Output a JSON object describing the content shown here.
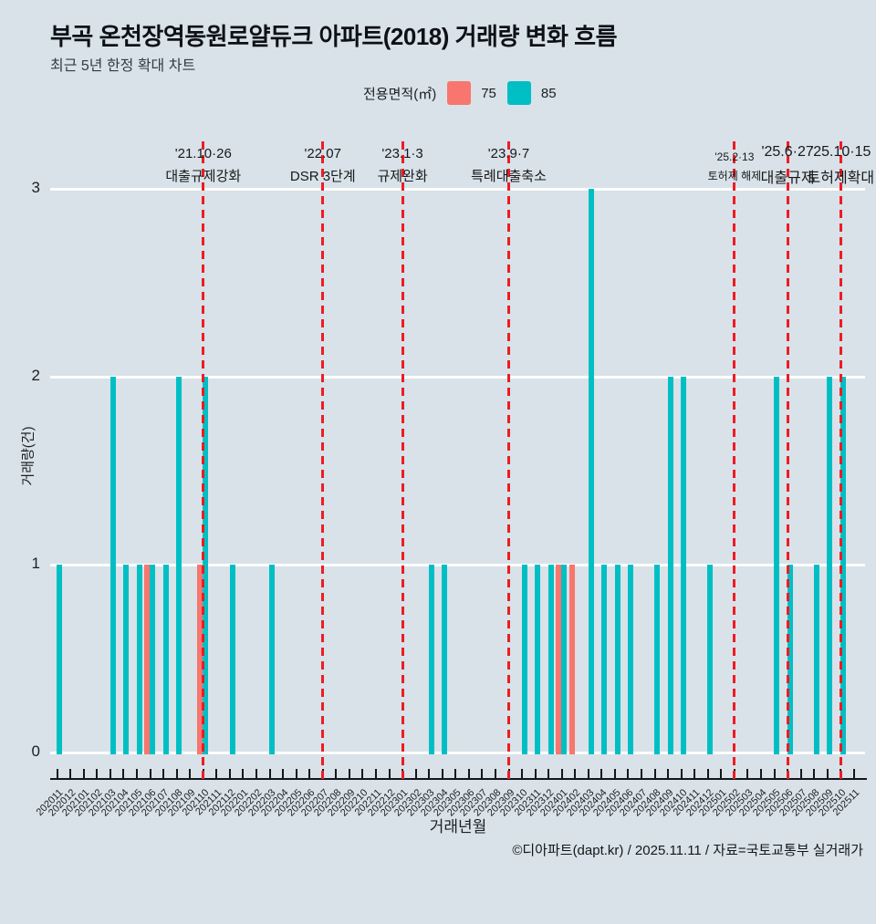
{
  "title": "부곡 온천장역동원로얄듀크 아파트(2018) 거래량 변화 흐름",
  "subtitle": "최근 5년 한정 확대 차트",
  "legend": {
    "label": "전용면적(㎡)",
    "items": [
      {
        "name": "75",
        "color": "#F8766D"
      },
      {
        "name": "85",
        "color": "#00BFC4"
      }
    ]
  },
  "footer": "©디아파트(dapt.kr) / 2025.11.11 / 자료=국토교통부 실거래가",
  "colors": {
    "background": "#d8e2e8",
    "gridline": "#ffffff",
    "event_line": "#ed1c24",
    "axis": "#14171a"
  },
  "chart_data": {
    "type": "bar",
    "title": "부곡 온천장역동원로얄듀크 아파트(2018) 거래량 변화 흐름",
    "subtitle": "최근 5년 한정 확대 차트",
    "xlabel": "거래년월",
    "ylabel": "거래량(건)",
    "ylim": [
      0,
      3
    ],
    "yticks": [
      0,
      1,
      2,
      3
    ],
    "grid": true,
    "legend_position": "top",
    "categories": [
      "202011",
      "202012",
      "202101",
      "202102",
      "202103",
      "202104",
      "202105",
      "202106",
      "202109",
      "202107",
      "202108",
      "202110",
      "202111",
      "202112",
      "202201",
      "202202",
      "202203",
      "202204",
      "202205",
      "202206",
      "202207",
      "202208",
      "202209",
      "202210",
      "202211",
      "202212",
      "202301",
      "202302",
      "202303",
      "202304",
      "202305",
      "202306",
      "202307",
      "202308",
      "202309",
      "202310",
      "202311",
      "202312",
      "202401",
      "202402",
      "202403",
      "202404",
      "202405",
      "202406",
      "202407",
      "202408",
      "202409",
      "202410",
      "202411",
      "202412",
      "202501",
      "202502",
      "202503",
      "202504",
      "202505",
      "202506",
      "202507",
      "202508",
      "202509",
      "202510",
      "202511"
    ],
    "categories_ordered": [
      "202011",
      "202012",
      "202101",
      "202102",
      "202103",
      "202104",
      "202105",
      "202106",
      "202107",
      "202108",
      "202109",
      "202110",
      "202111",
      "202112",
      "202201",
      "202202",
      "202203",
      "202204",
      "202205",
      "202206",
      "202207",
      "202208",
      "202209",
      "202210",
      "202211",
      "202212",
      "202301",
      "202302",
      "202303",
      "202304",
      "202305",
      "202306",
      "202307",
      "202308",
      "202309",
      "202310",
      "202311",
      "202312",
      "202401",
      "202402",
      "202403",
      "202404",
      "202405",
      "202406",
      "202407",
      "202408",
      "202409",
      "202410",
      "202411",
      "202412",
      "202501",
      "202502",
      "202503",
      "202504",
      "202505",
      "202506",
      "202507",
      "202508",
      "202509",
      "202510",
      "202511"
    ],
    "series": [
      {
        "name": "75",
        "values": [
          0,
          0,
          0,
          0,
          0,
          0,
          0,
          1,
          0,
          0,
          0,
          1,
          0,
          0,
          0,
          0,
          0,
          0,
          0,
          0,
          0,
          0,
          0,
          0,
          0,
          0,
          0,
          0,
          0,
          0,
          0,
          0,
          0,
          0,
          0,
          0,
          0,
          0,
          1,
          1,
          0,
          0,
          0,
          0,
          0,
          0,
          0,
          0,
          0,
          0,
          0,
          0,
          0,
          0,
          0,
          0,
          0,
          0,
          0,
          0,
          0
        ]
      },
      {
        "name": "85",
        "values": [
          1,
          0,
          0,
          0,
          2,
          1,
          1,
          1,
          1,
          2,
          0,
          2,
          0,
          1,
          0,
          0,
          1,
          0,
          0,
          0,
          0,
          0,
          0,
          0,
          0,
          0,
          0,
          0,
          1,
          1,
          0,
          0,
          0,
          0,
          0,
          1,
          1,
          1,
          1,
          0,
          3,
          1,
          1,
          1,
          0,
          1,
          2,
          2,
          0,
          1,
          0,
          0,
          0,
          0,
          2,
          1,
          0,
          1,
          2,
          2,
          0
        ]
      }
    ],
    "annotations": [
      {
        "month": "202110",
        "date": "'21.10·26",
        "label": "대출규제강화",
        "size": "normal"
      },
      {
        "month": "202207",
        "date": "'22.07",
        "label": "DSR 3단계",
        "size": "normal"
      },
      {
        "month": "202301",
        "date": "'23.1·3",
        "label": "규제완화",
        "size": "normal"
      },
      {
        "month": "202309",
        "date": "'23.9·7",
        "label": "특례대출축소",
        "size": "normal"
      },
      {
        "month": "202502",
        "date": "'25.2·13",
        "label": "토허제 해제",
        "size": "small"
      },
      {
        "month": "202506",
        "date": "'25.6·27",
        "label": "대출규제",
        "size": "large"
      },
      {
        "month": "202510",
        "date": "'25.10·15",
        "label": "토허제확대",
        "size": "large"
      }
    ]
  }
}
